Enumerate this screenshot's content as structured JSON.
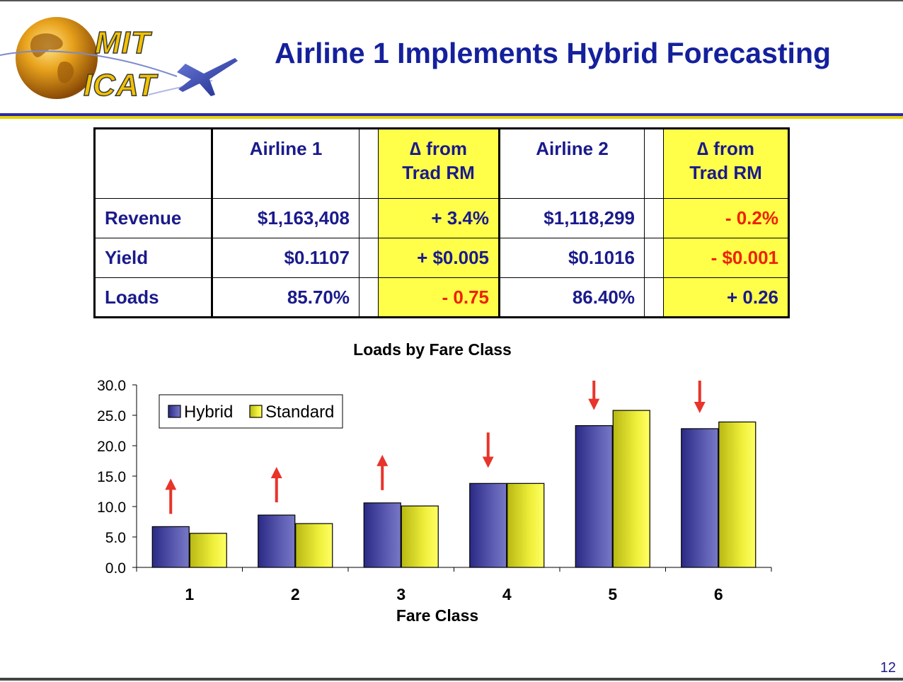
{
  "slide": {
    "title": "Airline 1 Implements Hybrid Forecasting",
    "page_number": "12",
    "logo": {
      "line1": "MIT",
      "line2": "ICAT"
    }
  },
  "table": {
    "headers": [
      "",
      "Airline 1",
      "",
      "∆ from\nTrad RM",
      "Airline 2",
      "",
      "∆ from\nTrad RM"
    ],
    "rows": [
      {
        "label": "Revenue",
        "a1": "$1,163,408",
        "a1_delta": "+ 3.4%",
        "a2": "$1,118,299",
        "a2_delta": "- 0.2%"
      },
      {
        "label": "Yield",
        "a1": "$0.1107",
        "a1_delta": "+ $0.005",
        "a2": "$0.1016",
        "a2_delta": "- $0.001"
      },
      {
        "label": "Loads",
        "a1": "85.70%",
        "a1_delta": "- 0.75",
        "a2": "86.40%",
        "a2_delta": "+ 0.26"
      }
    ]
  },
  "colors": {
    "title_blue": "#14209c",
    "text_navy": "#1a1a8c",
    "highlight_yellow": "#ffff4a",
    "negative_red": "#ee2200",
    "hybrid_bar": "#4a4aa6",
    "standard_bar": "#eded3a",
    "arrow_red": "#e8342a"
  },
  "chart_data": {
    "type": "bar",
    "title": "Loads by Fare Class",
    "xlabel": "Fare Class",
    "ylabel": "",
    "categories": [
      "1",
      "2",
      "3",
      "4",
      "5",
      "6"
    ],
    "series": [
      {
        "name": "Hybrid",
        "values": [
          6.7,
          8.6,
          10.6,
          13.8,
          23.3,
          22.8
        ]
      },
      {
        "name": "Standard",
        "values": [
          5.6,
          7.2,
          10.1,
          13.8,
          25.8,
          23.9
        ]
      }
    ],
    "ylim": [
      0,
      30
    ],
    "yticks": [
      "0.0",
      "5.0",
      "10.0",
      "15.0",
      "20.0",
      "25.0",
      "30.0"
    ],
    "legend_position": "top-left",
    "grid": false,
    "annotations": {
      "arrows": [
        "up",
        "up",
        "up",
        "down",
        "down",
        "down"
      ]
    }
  }
}
